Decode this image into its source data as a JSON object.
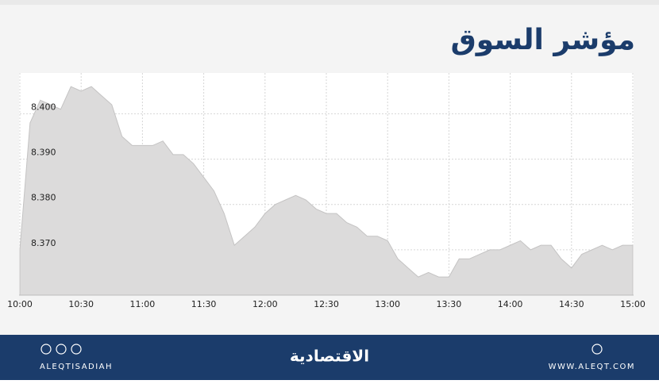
{
  "chart_data": {
    "type": "area",
    "title": "مؤشر السوق",
    "x": [
      "10:00",
      "10:05",
      "10:10",
      "10:15",
      "10:20",
      "10:25",
      "10:30",
      "10:35",
      "10:40",
      "10:45",
      "10:50",
      "10:55",
      "11:00",
      "11:05",
      "11:10",
      "11:15",
      "11:20",
      "11:25",
      "11:30",
      "11:35",
      "11:40",
      "11:45",
      "11:50",
      "11:55",
      "12:00",
      "12:05",
      "12:10",
      "12:15",
      "12:20",
      "12:25",
      "12:30",
      "12:35",
      "12:40",
      "12:45",
      "12:50",
      "12:55",
      "13:00",
      "13:05",
      "13:10",
      "13:15",
      "13:20",
      "13:25",
      "13:30",
      "13:35",
      "13:40",
      "13:45",
      "13:50",
      "13:55",
      "14:00",
      "14:05",
      "14:10",
      "14:15",
      "14:20",
      "14:25",
      "14:30",
      "14:35",
      "14:40",
      "14:45",
      "14:50",
      "14:55",
      "15:00"
    ],
    "values": [
      8.37,
      8.398,
      8.403,
      8.402,
      8.401,
      8.406,
      8.405,
      8.406,
      8.404,
      8.402,
      8.395,
      8.393,
      8.393,
      8.393,
      8.394,
      8.391,
      8.391,
      8.389,
      8.386,
      8.383,
      8.378,
      8.371,
      8.373,
      8.375,
      8.378,
      8.38,
      8.381,
      8.382,
      8.381,
      8.379,
      8.378,
      8.378,
      8.376,
      8.375,
      8.373,
      8.373,
      8.372,
      8.368,
      8.366,
      8.364,
      8.365,
      8.364,
      8.364,
      8.368,
      8.368,
      8.369,
      8.37,
      8.37,
      8.371,
      8.372,
      8.37,
      8.371,
      8.371,
      8.368,
      8.366,
      8.369,
      8.37,
      8.371,
      8.37,
      8.371,
      8.371
    ],
    "color": "#dcdbdb",
    "xlim": [
      "10:00",
      "15:00"
    ],
    "xticks": [
      "10:00",
      "10:30",
      "11:00",
      "11:30",
      "12:00",
      "12:30",
      "13:00",
      "13:30",
      "14:00",
      "14:30",
      "15:00"
    ],
    "ylim": [
      8.36,
      8.409
    ],
    "yticks": [
      {
        "value": 8.37,
        "label": "8.370"
      },
      {
        "value": 8.38,
        "label": "8.380"
      },
      {
        "value": 8.39,
        "label": "8.390"
      },
      {
        "value": 8.4,
        "label": "8.400"
      }
    ],
    "grid": true
  },
  "footer": {
    "brand": "الاقتصادية",
    "handle": "ALEQTISADIAH",
    "site": "WWW.ALEQT.COM"
  }
}
